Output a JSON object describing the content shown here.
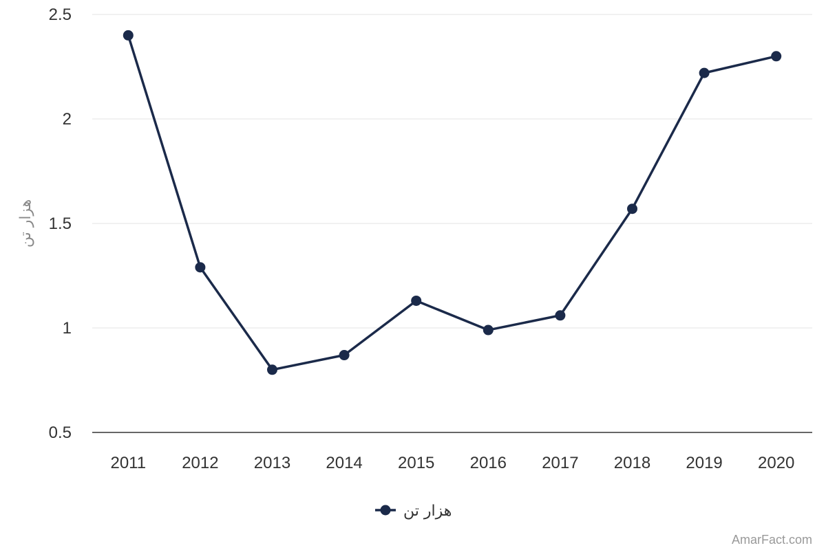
{
  "chart_data": {
    "type": "line",
    "categories": [
      "2011",
      "2012",
      "2013",
      "2014",
      "2015",
      "2016",
      "2017",
      "2018",
      "2019",
      "2020"
    ],
    "series": [
      {
        "name": "هزار تن",
        "values": [
          2.4,
          1.29,
          0.8,
          0.87,
          1.13,
          0.99,
          1.06,
          1.57,
          2.22,
          2.3
        ],
        "color": "#1b2a4a"
      }
    ],
    "ylabel": "هزار تن",
    "ylim": [
      0.5,
      2.5
    ],
    "yticks": [
      "0.5",
      "1",
      "1.5",
      "2",
      "2.5"
    ],
    "grid": true,
    "legend_position": "bottom-center"
  },
  "credit": "AmarFact.com"
}
